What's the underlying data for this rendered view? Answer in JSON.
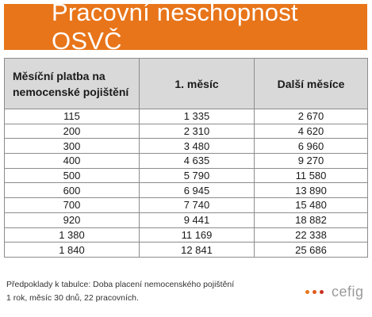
{
  "title": "Pracovní neschopnost OSVČ",
  "table": {
    "headers": [
      "Měsíční platba na nemocenské pojištění",
      "1. měsíc",
      "Další měsíce"
    ],
    "rows": [
      [
        "115",
        "1 335",
        "2 670"
      ],
      [
        "200",
        "2 310",
        "4 620"
      ],
      [
        "300",
        "3 480",
        "6 960"
      ],
      [
        "400",
        "4 635",
        "9 270"
      ],
      [
        "500",
        "5 790",
        "11 580"
      ],
      [
        "600",
        "6 945",
        "13 890"
      ],
      [
        "700",
        "7 740",
        "15 480"
      ],
      [
        "920",
        "9 441",
        "18 882"
      ],
      [
        "1 380",
        "11 169",
        "22 338"
      ],
      [
        "1 840",
        "12 841",
        "25 686"
      ]
    ]
  },
  "note": {
    "line1": "Předpoklady k tabulce: Doba placení nemocenského pojištění",
    "line2": "1 rok, měsíc 30 dnů, 22 pracovních."
  },
  "logo": {
    "text": "cefig",
    "dot_colors": [
      "#e8751a",
      "#e05a1c",
      "#c9301e"
    ]
  },
  "colors": {
    "banner": "#e8751a",
    "header_bg": "#d9d9d9",
    "border": "#8c8c8c"
  }
}
